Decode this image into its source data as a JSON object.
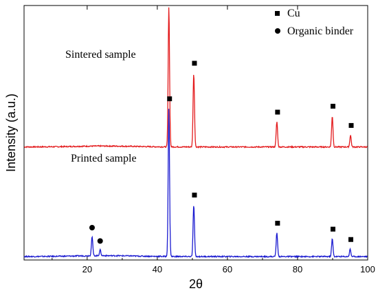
{
  "chart_data": {
    "type": "line",
    "xlabel": "2θ",
    "ylabel": "Intensity (a.u.)",
    "xlim": [
      2,
      100
    ],
    "x_ticks": [
      20,
      40,
      60,
      80,
      100
    ],
    "y_ticks_shown": false,
    "y_unit": "a.u.",
    "legend": {
      "placement": "top-right",
      "entries": [
        {
          "name": "Cu",
          "marker": "square"
        },
        {
          "name": "Organic binder",
          "marker": "circle"
        }
      ]
    },
    "series": [
      {
        "name": "Sintered sample",
        "color": "#e31a1c",
        "baseline": 0.74,
        "peaks": [
          {
            "x": 43.3,
            "height": 0.95,
            "marker": "square",
            "phase": "Cu"
          },
          {
            "x": 50.4,
            "height": 0.5,
            "marker": "square",
            "phase": "Cu"
          },
          {
            "x": 74.1,
            "height": 0.17,
            "marker": "square",
            "phase": "Cu"
          },
          {
            "x": 89.9,
            "height": 0.21,
            "marker": "square",
            "phase": "Cu"
          },
          {
            "x": 95.1,
            "height": 0.08,
            "marker": "square",
            "phase": "Cu"
          }
        ]
      },
      {
        "name": "Printed sample",
        "color": "#1a1ad0",
        "baseline": 0.0,
        "peaks": [
          {
            "x": 21.4,
            "height": 0.13,
            "marker": "circle",
            "phase": "Organic binder"
          },
          {
            "x": 23.7,
            "height": 0.04,
            "marker": "circle",
            "phase": "Organic binder"
          },
          {
            "x": 43.3,
            "height": 1.0,
            "marker": "square",
            "phase": "Cu"
          },
          {
            "x": 50.4,
            "height": 0.35,
            "marker": "square",
            "phase": "Cu"
          },
          {
            "x": 74.1,
            "height": 0.16,
            "marker": "square",
            "phase": "Cu"
          },
          {
            "x": 89.9,
            "height": 0.12,
            "marker": "square",
            "phase": "Cu"
          },
          {
            "x": 95.0,
            "height": 0.05,
            "marker": "square",
            "phase": "Cu"
          }
        ]
      }
    ]
  }
}
